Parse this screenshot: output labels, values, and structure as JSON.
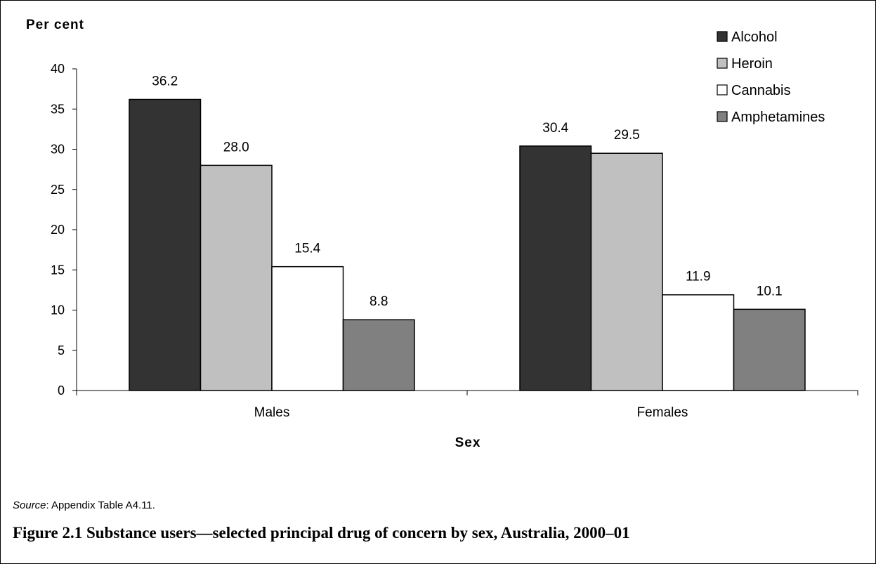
{
  "chart_data": {
    "type": "bar",
    "ylabel": "Per cent",
    "xlabel": "Sex",
    "categories": [
      "Males",
      "Females"
    ],
    "ylim": [
      0,
      40
    ],
    "yticks": [
      0,
      5,
      10,
      15,
      20,
      25,
      30,
      35,
      40
    ],
    "grid": false,
    "legend_position": "top-right",
    "series": [
      {
        "name": "Alcohol",
        "values": [
          36.2,
          30.4
        ],
        "labels": [
          "36.2",
          "30.4"
        ],
        "color": "#333333"
      },
      {
        "name": "Heroin",
        "values": [
          28.0,
          29.5
        ],
        "labels": [
          "28.0",
          "29.5"
        ],
        "color": "#c0c0c0"
      },
      {
        "name": "Cannabis",
        "values": [
          15.4,
          11.9
        ],
        "labels": [
          "15.4",
          "11.9"
        ],
        "color": "#ffffff"
      },
      {
        "name": "Amphetamines",
        "values": [
          8.8,
          10.1
        ],
        "labels": [
          "8.8",
          "10.1"
        ],
        "color": "#808080"
      }
    ]
  },
  "source": {
    "label": "Source",
    "text": ": Appendix Table A4.11."
  },
  "caption": "Figure 2.1 Substance users—selected principal drug of concern by sex, Australia, 2000–01"
}
